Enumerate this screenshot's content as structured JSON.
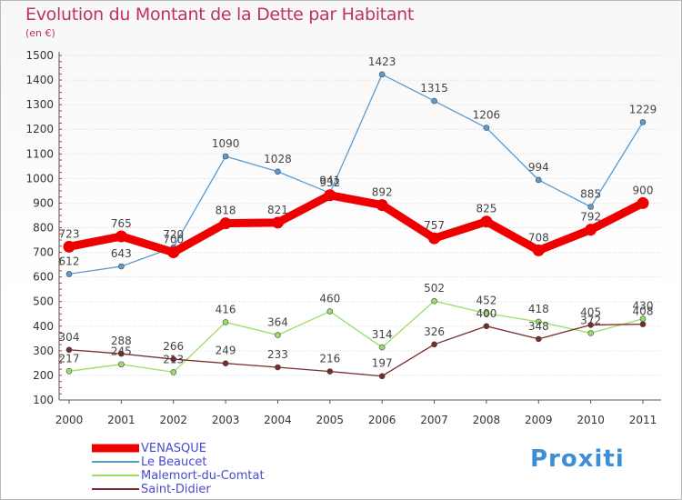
{
  "colors": {
    "title": "#c0306a",
    "legend_text": "#4a4acd",
    "axis_text": "#333333",
    "grid": "#d6d6d6",
    "axis": "#555555"
  },
  "logo": {
    "text": "Proxiti",
    "icon": "proxiti-logo"
  },
  "chart_data": {
    "type": "line",
    "title": "Evolution du Montant de la Dette par Habitant",
    "subtitle": "(en €)",
    "xlabel": "",
    "ylabel": "",
    "x": [
      "2000",
      "2001",
      "2002",
      "2003",
      "2004",
      "2005",
      "2006",
      "2007",
      "2008",
      "2009",
      "2010",
      "2011"
    ],
    "y_ticks": [
      100,
      200,
      300,
      400,
      500,
      600,
      700,
      800,
      900,
      1000,
      1100,
      1200,
      1300,
      1400,
      1500
    ],
    "ylim": [
      100,
      1500
    ],
    "grid": "horizontal",
    "legend_position": "bottom-left",
    "series": [
      {
        "name": "VENASQUE",
        "color": "#ee0000",
        "emphasis": true,
        "values": [
          723,
          765,
          700,
          818,
          821,
          932,
          892,
          757,
          825,
          708,
          792,
          900
        ]
      },
      {
        "name": "Le Beaucet",
        "color": "#5b9bd1",
        "emphasis": false,
        "values": [
          612,
          643,
          720,
          1090,
          1028,
          941,
          1423,
          1315,
          1206,
          994,
          885,
          1229
        ]
      },
      {
        "name": "Malemort-du-Comtat",
        "color": "#99dd66",
        "emphasis": false,
        "values": [
          217,
          245,
          213,
          416,
          364,
          460,
          314,
          502,
          452,
          418,
          372,
          430
        ]
      },
      {
        "name": "Saint-Didier",
        "color": "#7a2a2a",
        "emphasis": false,
        "values": [
          304,
          288,
          266,
          249,
          233,
          216,
          197,
          326,
          400,
          348,
          405,
          408
        ]
      }
    ]
  }
}
